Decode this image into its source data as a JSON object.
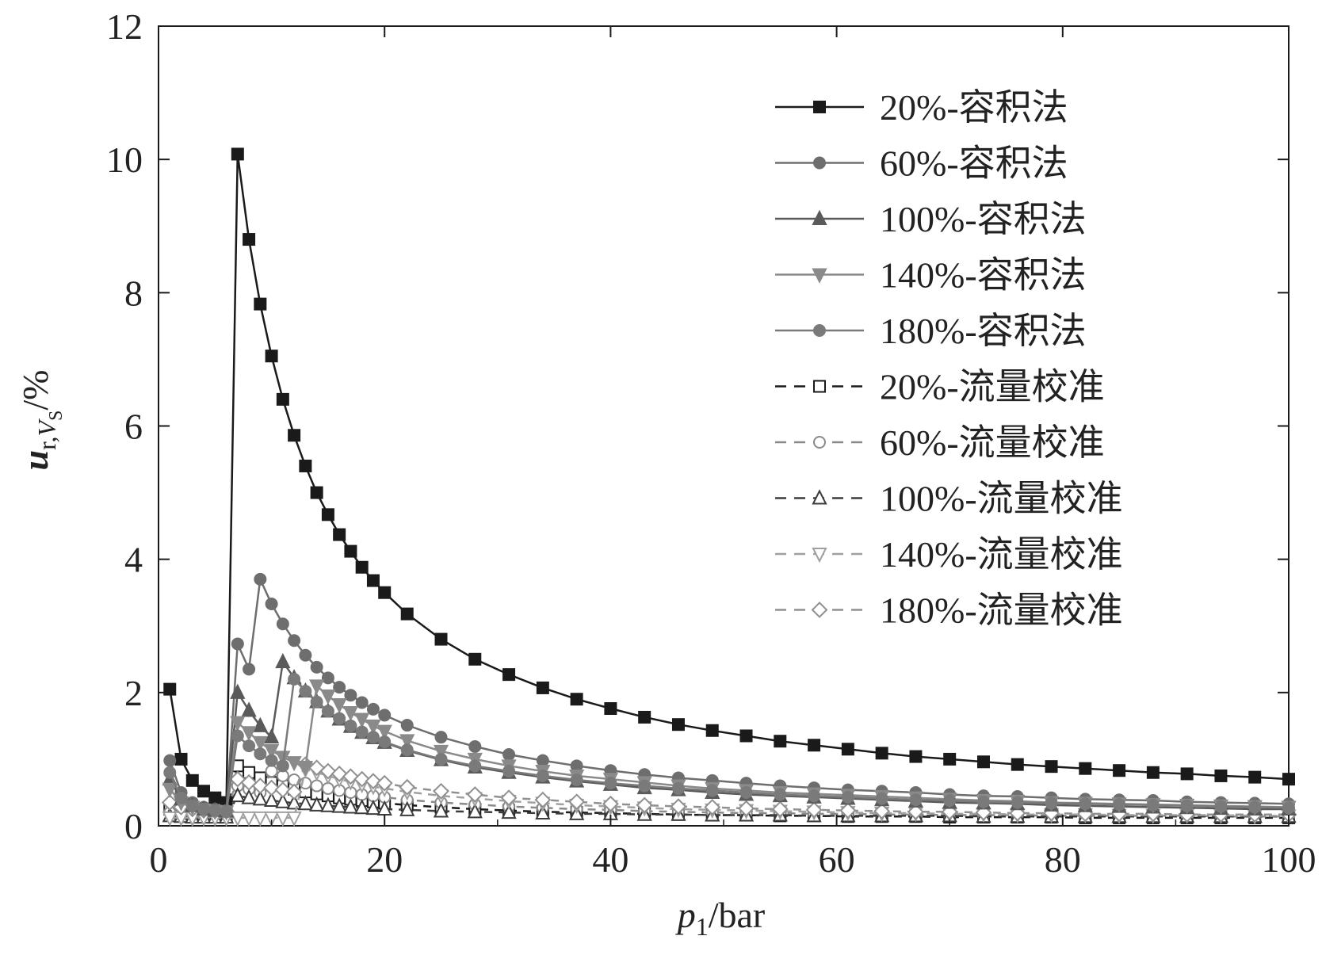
{
  "chart_data": {
    "type": "line",
    "xlabel": "p1/bar",
    "xlabel_parts": {
      "symbol": "p",
      "sub": "1",
      "unit": "/bar"
    },
    "ylabel": "u r,VS /%",
    "ylabel_parts": {
      "symbol": "u",
      "sub": "r,",
      "subsym": "V",
      "subsub": "S",
      "unit": "/%"
    },
    "xlim": [
      0,
      100
    ],
    "ylim": [
      0,
      12
    ],
    "xticks": [
      0,
      20,
      40,
      60,
      80,
      100
    ],
    "yticks": [
      0,
      2,
      4,
      6,
      8,
      10,
      12
    ],
    "x_tick_labels": [
      "0",
      "20",
      "40",
      "60",
      "80",
      "100"
    ],
    "y_tick_labels": [
      "0",
      "2",
      "4",
      "6",
      "8",
      "10",
      "12"
    ],
    "grid": false,
    "legend_position": "top-right",
    "series": [
      {
        "name": "20%-容积法",
        "color": "#1a1a1a",
        "marker": "square",
        "filled": true,
        "dash": false,
        "x": [
          1,
          2,
          3,
          4,
          5,
          6,
          7,
          8,
          9,
          10,
          11,
          12,
          13,
          14,
          15,
          16,
          17,
          18,
          19,
          20,
          22,
          25,
          28,
          31,
          34,
          37,
          40,
          43,
          46,
          49,
          52,
          55,
          58,
          61,
          64,
          67,
          70,
          73,
          76,
          79,
          82,
          85,
          88,
          91,
          94,
          97,
          100
        ],
        "y": [
          2.05,
          1.0,
          0.68,
          0.52,
          0.42,
          0.35,
          10.08,
          8.8,
          7.83,
          7.05,
          6.4,
          5.86,
          5.4,
          5.0,
          4.67,
          4.37,
          4.12,
          3.88,
          3.68,
          3.5,
          3.18,
          2.8,
          2.5,
          2.27,
          2.07,
          1.9,
          1.76,
          1.63,
          1.52,
          1.43,
          1.35,
          1.27,
          1.21,
          1.15,
          1.09,
          1.04,
          1.0,
          0.96,
          0.92,
          0.89,
          0.86,
          0.83,
          0.8,
          0.78,
          0.75,
          0.73,
          0.7
        ]
      },
      {
        "name": "60%-容积法",
        "color": "#6e6e6e",
        "marker": "circle",
        "filled": true,
        "dash": false,
        "x": [
          1,
          2,
          3,
          4,
          5,
          6,
          7,
          8,
          9,
          10,
          11,
          12,
          13,
          14,
          15,
          16,
          17,
          18,
          19,
          20,
          22,
          25,
          28,
          31,
          34,
          37,
          40,
          43,
          46,
          49,
          52,
          55,
          58,
          61,
          64,
          67,
          70,
          73,
          76,
          79,
          82,
          85,
          88,
          91,
          94,
          97,
          100
        ],
        "y": [
          0.98,
          0.5,
          0.35,
          0.28,
          0.25,
          0.23,
          2.73,
          2.35,
          3.7,
          3.33,
          3.03,
          2.78,
          2.56,
          2.38,
          2.22,
          2.08,
          1.96,
          1.85,
          1.75,
          1.66,
          1.51,
          1.33,
          1.19,
          1.07,
          0.98,
          0.9,
          0.83,
          0.77,
          0.72,
          0.68,
          0.64,
          0.6,
          0.57,
          0.54,
          0.52,
          0.5,
          0.47,
          0.45,
          0.44,
          0.42,
          0.4,
          0.39,
          0.38,
          0.36,
          0.35,
          0.34,
          0.33
        ]
      },
      {
        "name": "100%-容积法",
        "color": "#5a5a5a",
        "marker": "triangle-up",
        "filled": true,
        "dash": false,
        "x": [
          1,
          2,
          3,
          4,
          5,
          6,
          7,
          8,
          9,
          10,
          11,
          12,
          13,
          14,
          15,
          16,
          17,
          18,
          19,
          20,
          22,
          25,
          28,
          31,
          34,
          37,
          40,
          43,
          46,
          49,
          52,
          55,
          58,
          61,
          64,
          67,
          70,
          73,
          76,
          79,
          82,
          85,
          88,
          91,
          94,
          97,
          100
        ],
        "y": [
          0.7,
          0.4,
          0.3,
          0.25,
          0.23,
          0.22,
          2.0,
          1.73,
          1.5,
          1.33,
          2.46,
          2.22,
          2.02,
          1.86,
          1.72,
          1.6,
          1.49,
          1.4,
          1.32,
          1.25,
          1.13,
          0.99,
          0.88,
          0.8,
          0.73,
          0.67,
          0.62,
          0.57,
          0.54,
          0.5,
          0.47,
          0.45,
          0.43,
          0.41,
          0.39,
          0.37,
          0.35,
          0.34,
          0.33,
          0.31,
          0.3,
          0.29,
          0.28,
          0.27,
          0.26,
          0.25,
          0.25
        ]
      },
      {
        "name": "140%-容积法",
        "color": "#8a8a8a",
        "marker": "triangle-down",
        "filled": true,
        "dash": false,
        "x": [
          1,
          2,
          3,
          4,
          5,
          6,
          7,
          8,
          9,
          10,
          11,
          12,
          13,
          14,
          15,
          16,
          17,
          18,
          19,
          20,
          22,
          25,
          28,
          31,
          34,
          37,
          40,
          43,
          46,
          49,
          52,
          55,
          58,
          61,
          64,
          67,
          70,
          73,
          76,
          79,
          82,
          85,
          88,
          91,
          94,
          97,
          100
        ],
        "y": [
          0.55,
          0.35,
          0.28,
          0.24,
          0.22,
          0.21,
          1.55,
          1.4,
          1.25,
          1.13,
          1.03,
          0.95,
          0.88,
          2.1,
          1.95,
          1.82,
          1.7,
          1.6,
          1.5,
          1.42,
          1.28,
          1.12,
          1.0,
          0.9,
          0.82,
          0.75,
          0.7,
          0.65,
          0.6,
          0.56,
          0.53,
          0.5,
          0.48,
          0.46,
          0.44,
          0.42,
          0.4,
          0.38,
          0.37,
          0.35,
          0.34,
          0.33,
          0.32,
          0.31,
          0.3,
          0.29,
          0.28
        ]
      },
      {
        "name": "180%-容积法",
        "color": "#7a7a7a",
        "marker": "circle",
        "filled": true,
        "dash": false,
        "x": [
          1,
          2,
          3,
          4,
          5,
          6,
          7,
          8,
          9,
          10,
          11,
          12,
          13,
          14,
          15,
          16,
          17,
          18,
          19,
          20,
          22,
          25,
          28,
          31,
          34,
          37,
          40,
          43,
          46,
          49,
          52,
          55,
          58,
          61,
          64,
          67,
          70,
          73,
          76,
          79,
          82,
          85,
          88,
          91,
          94,
          97,
          100
        ],
        "y": [
          0.8,
          0.42,
          0.3,
          0.25,
          0.23,
          0.21,
          1.35,
          1.2,
          1.08,
          0.98,
          0.9,
          2.2,
          2.02,
          1.86,
          1.72,
          1.61,
          1.5,
          1.41,
          1.33,
          1.26,
          1.14,
          1.0,
          0.9,
          0.82,
          0.75,
          0.69,
          0.64,
          0.6,
          0.56,
          0.53,
          0.5,
          0.47,
          0.45,
          0.43,
          0.41,
          0.39,
          0.38,
          0.36,
          0.35,
          0.34,
          0.33,
          0.32,
          0.31,
          0.3,
          0.29,
          0.28,
          0.27
        ]
      },
      {
        "name": "20%-流量校准",
        "color": "#1a1a1a",
        "marker": "square",
        "filled": false,
        "dash": true,
        "x": [
          1,
          2,
          3,
          4,
          5,
          6,
          7,
          8,
          9,
          10,
          11,
          12,
          13,
          14,
          15,
          16,
          17,
          18,
          19,
          20,
          22,
          25,
          28,
          31,
          34,
          37,
          40,
          43,
          46,
          49,
          52,
          55,
          58,
          61,
          64,
          67,
          70,
          73,
          76,
          79,
          82,
          85,
          88,
          91,
          94,
          97,
          100
        ],
        "y": [
          0.25,
          0.2,
          0.18,
          0.17,
          0.16,
          0.16,
          0.9,
          0.8,
          0.72,
          0.65,
          0.6,
          0.55,
          0.51,
          0.48,
          0.45,
          0.42,
          0.4,
          0.38,
          0.36,
          0.34,
          0.31,
          0.28,
          0.25,
          0.23,
          0.21,
          0.2,
          0.19,
          0.18,
          0.17,
          0.16,
          0.16,
          0.15,
          0.15,
          0.14,
          0.14,
          0.14,
          0.13,
          0.13,
          0.13,
          0.13,
          0.12,
          0.12,
          0.12,
          0.12,
          0.12,
          0.12,
          0.12
        ]
      },
      {
        "name": "60%-流量校准",
        "color": "#8a8a8a",
        "marker": "circle",
        "filled": false,
        "dash": true,
        "x": [
          1,
          2,
          3,
          4,
          5,
          6,
          7,
          8,
          9,
          10,
          11,
          12,
          13,
          14,
          15,
          16,
          17,
          18,
          19,
          20,
          22,
          25,
          28,
          31,
          34,
          37,
          40,
          43,
          46,
          49,
          52,
          55,
          58,
          61,
          64,
          67,
          70,
          73,
          76,
          79,
          82,
          85,
          88,
          91,
          94,
          97,
          100
        ],
        "y": [
          0.2,
          0.17,
          0.16,
          0.15,
          0.15,
          0.15,
          0.6,
          0.55,
          0.5,
          0.82,
          0.75,
          0.69,
          0.64,
          0.6,
          0.56,
          0.53,
          0.5,
          0.47,
          0.45,
          0.43,
          0.39,
          0.35,
          0.32,
          0.29,
          0.27,
          0.25,
          0.24,
          0.22,
          0.21,
          0.2,
          0.19,
          0.19,
          0.18,
          0.18,
          0.17,
          0.17,
          0.16,
          0.16,
          0.16,
          0.15,
          0.15,
          0.15,
          0.15,
          0.15,
          0.14,
          0.14,
          0.14
        ]
      },
      {
        "name": "100%-流量校准",
        "color": "#3c3c3c",
        "marker": "triangle-up",
        "filled": false,
        "dash": true,
        "x": [
          1,
          2,
          3,
          4,
          5,
          6,
          7,
          8,
          9,
          10,
          11,
          12,
          13,
          14,
          15,
          16,
          17,
          18,
          19,
          20,
          22,
          25,
          28,
          31,
          34,
          37,
          40,
          43,
          46,
          49,
          52,
          55,
          58,
          61,
          64,
          67,
          70,
          73,
          76,
          79,
          82,
          85,
          88,
          91,
          94,
          97,
          100
        ],
        "y": [
          0.15,
          0.14,
          0.13,
          0.13,
          0.13,
          0.13,
          0.45,
          0.42,
          0.4,
          0.38,
          0.36,
          0.34,
          0.33,
          0.31,
          0.3,
          0.29,
          0.28,
          0.27,
          0.26,
          0.25,
          0.24,
          0.22,
          0.21,
          0.2,
          0.19,
          0.18,
          0.18,
          0.17,
          0.17,
          0.16,
          0.16,
          0.16,
          0.15,
          0.15,
          0.15,
          0.15,
          0.15,
          0.14,
          0.14,
          0.14,
          0.14,
          0.14,
          0.14,
          0.14,
          0.14,
          0.14,
          0.14
        ]
      },
      {
        "name": "140%-流量校准",
        "color": "#a0a0a0",
        "marker": "triangle-down",
        "filled": false,
        "dash": true,
        "x": [
          1,
          2,
          3,
          4,
          5,
          6,
          7,
          8,
          9,
          10,
          11,
          12,
          13,
          14,
          15,
          16,
          17,
          18,
          19,
          20,
          22,
          25,
          28,
          31,
          34,
          37,
          40,
          43,
          46,
          49,
          52,
          55,
          58,
          61,
          64,
          67,
          70,
          73,
          76,
          79,
          82,
          85,
          88,
          91,
          94,
          97,
          100
        ],
        "y": [
          0.12,
          0.12,
          0.12,
          0.12,
          0.12,
          0.12,
          0.12,
          0.12,
          0.12,
          0.12,
          0.12,
          0.12,
          0.85,
          0.8,
          0.75,
          0.7,
          0.66,
          0.62,
          0.59,
          0.56,
          0.51,
          0.45,
          0.41,
          0.37,
          0.34,
          0.31,
          0.29,
          0.27,
          0.25,
          0.24,
          0.23,
          0.22,
          0.21,
          0.2,
          0.19,
          0.19,
          0.18,
          0.18,
          0.17,
          0.17,
          0.17,
          0.16,
          0.16,
          0.16,
          0.16,
          0.15,
          0.15
        ]
      },
      {
        "name": "180%-流量校准",
        "color": "#909090",
        "marker": "diamond",
        "filled": false,
        "dash": true,
        "x": [
          1,
          2,
          3,
          4,
          5,
          6,
          7,
          8,
          9,
          10,
          11,
          12,
          13,
          14,
          15,
          16,
          17,
          18,
          19,
          20,
          22,
          25,
          28,
          31,
          34,
          37,
          40,
          43,
          46,
          49,
          52,
          55,
          58,
          61,
          64,
          67,
          70,
          73,
          76,
          79,
          82,
          85,
          88,
          91,
          94,
          97,
          100
        ],
        "y": [
          0.35,
          0.28,
          0.25,
          0.23,
          0.22,
          0.22,
          0.7,
          0.65,
          0.6,
          0.57,
          0.54,
          0.51,
          0.92,
          0.87,
          0.82,
          0.78,
          0.74,
          0.7,
          0.67,
          0.64,
          0.58,
          0.52,
          0.47,
          0.42,
          0.39,
          0.36,
          0.33,
          0.31,
          0.29,
          0.28,
          0.26,
          0.25,
          0.24,
          0.23,
          0.22,
          0.21,
          0.21,
          0.2,
          0.19,
          0.19,
          0.18,
          0.18,
          0.18,
          0.17,
          0.17,
          0.17,
          0.17
        ]
      }
    ]
  }
}
